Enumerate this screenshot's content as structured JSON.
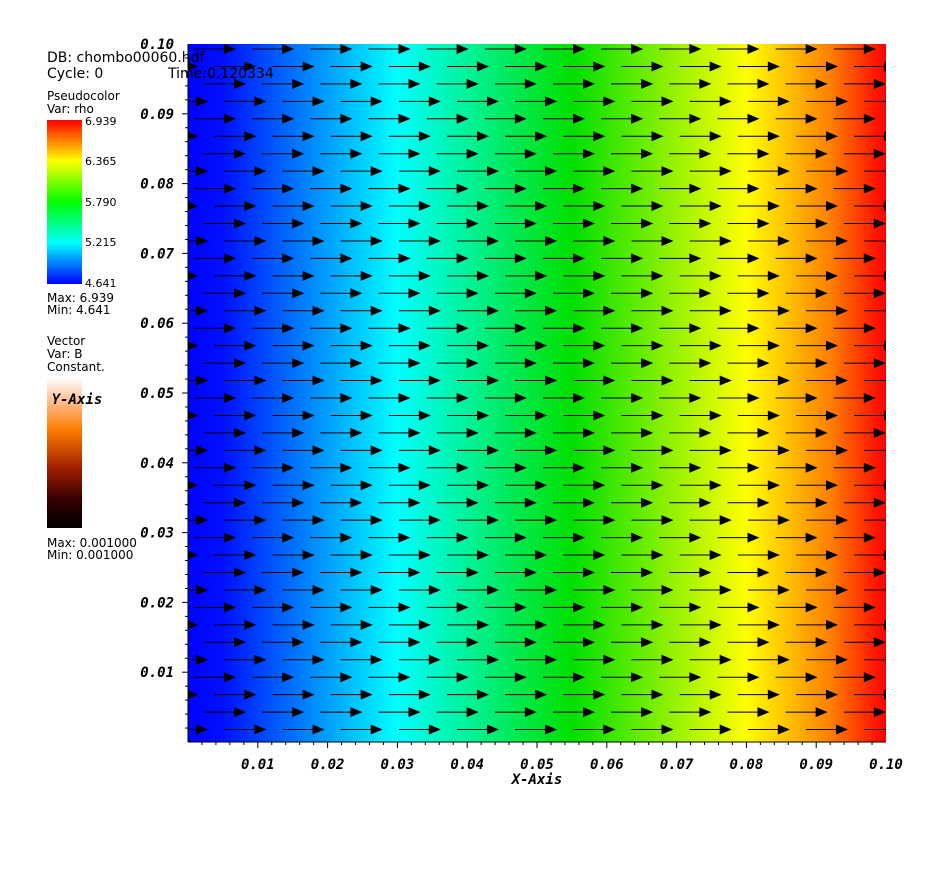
{
  "info": {
    "db_line": "DB: chombo00060.hdf",
    "cycle_line": "Cycle: 0",
    "time_line": "Time:0.120334"
  },
  "legend_pseudocolor": {
    "title": "Pseudocolor",
    "var": "Var: rho",
    "tick_labels": [
      "6.939",
      "6.365",
      "5.790",
      "5.215",
      "4.641"
    ],
    "max_label": "Max:  6.939",
    "min_label": "Min:  4.641"
  },
  "legend_vector": {
    "title": "Vector",
    "var": "Var: B",
    "constant": "Constant.",
    "max_label": "Max:  0.001000",
    "min_label": "Min:  0.001000"
  },
  "chart_data": {
    "type": "heatmap",
    "xlabel": "X-Axis",
    "ylabel": "Y-Axis",
    "xlim": [
      0.0,
      0.1
    ],
    "ylim": [
      0.0,
      0.1
    ],
    "x_ticks": [
      "0.01",
      "0.02",
      "0.03",
      "0.04",
      "0.05",
      "0.06",
      "0.07",
      "0.08",
      "0.09",
      "0.10"
    ],
    "y_ticks": [
      "0.01",
      "0.02",
      "0.03",
      "0.04",
      "0.05",
      "0.06",
      "0.07",
      "0.08",
      "0.09",
      "0.10"
    ],
    "field": "rho",
    "rho_range": [
      4.641,
      6.939
    ],
    "colormap": [
      "#0000ff",
      "#00ffff",
      "#00ff00",
      "#ffff00",
      "#ff0000"
    ],
    "vector_field": "B",
    "vector_direction": "+x",
    "vector_columns": 12,
    "vector_rows": 40,
    "vector_color": "#000000"
  }
}
